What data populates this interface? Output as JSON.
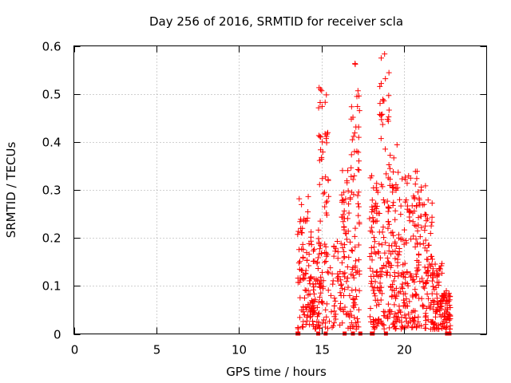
{
  "chart_data": {
    "type": "scatter",
    "title": "Day 256 of 2016, SRMTID for receiver scla",
    "xlabel": "GPS time / hours",
    "ylabel": "SRMTID / TECUs",
    "xlim": [
      0,
      25
    ],
    "ylim": [
      0,
      0.6
    ],
    "xticks": [
      0,
      5,
      10,
      15,
      20
    ],
    "xtick_labels": [
      "0",
      "5",
      "10",
      "15",
      "20"
    ],
    "yticks": [
      0,
      0.1,
      0.2,
      0.3,
      0.4,
      0.5,
      0.6
    ],
    "ytick_labels": [
      "0",
      "0.1",
      "0.2",
      "0.3",
      "0.4",
      "0.5",
      "0.6"
    ],
    "grid": true,
    "marker": "+",
    "color": "#ff0000",
    "zero_markers_x": [
      13.55,
      13.6,
      14.8,
      15.25,
      16.4,
      16.9,
      17.35,
      18.05,
      18.1,
      18.9,
      22.6,
      22.75
    ],
    "clusters": [
      {
        "t0": 13.55,
        "t1": 14.2,
        "n": 70,
        "peak": 0.29
      },
      {
        "t0": 14.2,
        "t1": 14.9,
        "n": 75,
        "peak": 0.22
      },
      {
        "t0": 14.8,
        "t1": 15.45,
        "n": 80,
        "peak": 0.52
      },
      {
        "t0": 15.4,
        "t1": 16.2,
        "n": 40,
        "peak": 0.2
      },
      {
        "t0": 16.2,
        "t1": 16.8,
        "n": 65,
        "peak": 0.35
      },
      {
        "t0": 16.8,
        "t1": 17.3,
        "n": 75,
        "peak": 0.57
      },
      {
        "t0": 17.9,
        "t1": 18.5,
        "n": 80,
        "peak": 0.33
      },
      {
        "t0": 18.5,
        "t1": 19.1,
        "n": 75,
        "peak": 0.59
      },
      {
        "t0": 19.0,
        "t1": 19.6,
        "n": 75,
        "peak": 0.4
      },
      {
        "t0": 19.6,
        "t1": 20.3,
        "n": 80,
        "peak": 0.35
      },
      {
        "t0": 20.3,
        "t1": 21.0,
        "n": 80,
        "peak": 0.35
      },
      {
        "t0": 21.0,
        "t1": 21.7,
        "n": 75,
        "peak": 0.31
      },
      {
        "t0": 21.7,
        "t1": 22.3,
        "n": 70,
        "peak": 0.16
      },
      {
        "t0": 22.3,
        "t1": 22.8,
        "n": 55,
        "peak": 0.09
      }
    ]
  }
}
